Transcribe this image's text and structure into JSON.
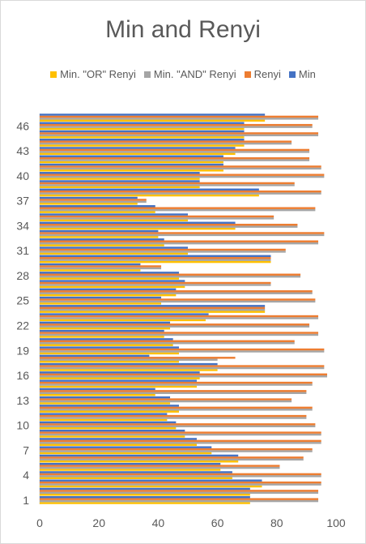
{
  "chart_data": {
    "type": "bar",
    "orientation": "horizontal",
    "title": "Min and Renyi",
    "xlabel": "",
    "ylabel": "",
    "xlim": [
      0,
      100
    ],
    "xticks": [
      0,
      20,
      40,
      60,
      80,
      100
    ],
    "yticks": [
      1,
      4,
      7,
      10,
      13,
      16,
      19,
      22,
      25,
      28,
      31,
      34,
      37,
      40,
      43,
      46
    ],
    "grid": false,
    "legend_position": "top",
    "categories": [
      1,
      2,
      3,
      4,
      5,
      6,
      7,
      8,
      9,
      10,
      11,
      12,
      13,
      14,
      15,
      16,
      17,
      18,
      19,
      20,
      21,
      22,
      23,
      24,
      25,
      26,
      27,
      28,
      29,
      30,
      31,
      32,
      33,
      34,
      35,
      36,
      37,
      38,
      39,
      40,
      41,
      42,
      43,
      44,
      45,
      46,
      47
    ],
    "series": [
      {
        "name": "Min. \"OR\" Renyi",
        "color": "#ffc000",
        "values": [
          71,
          71,
          75,
          65,
          61,
          67,
          58,
          53,
          49,
          46,
          43,
          47,
          44,
          39,
          53,
          54,
          60,
          47,
          47,
          45,
          42,
          44,
          56,
          76,
          41,
          46,
          49,
          47,
          34,
          78,
          50,
          42,
          40,
          66,
          50,
          39,
          33,
          74,
          54,
          54,
          62,
          62,
          66,
          69,
          69,
          69,
          76
        ]
      },
      {
        "name": "Min. \"AND\" Renyi",
        "color": "#a5a5a5",
        "values": [
          94,
          94,
          95,
          95,
          81,
          89,
          92,
          95,
          95,
          93,
          90,
          92,
          85,
          90,
          92,
          97,
          96,
          60,
          96,
          86,
          94,
          91,
          94,
          76,
          93,
          92,
          78,
          88,
          41,
          78,
          83,
          94,
          96,
          87,
          79,
          93,
          36,
          95,
          86,
          96,
          95,
          91,
          91,
          85,
          94,
          92,
          94
        ]
      },
      {
        "name": "Renyi",
        "color": "#ed7d31",
        "values": [
          94,
          94,
          95,
          95,
          81,
          89,
          92,
          95,
          95,
          93,
          90,
          92,
          85,
          90,
          92,
          97,
          96,
          66,
          96,
          86,
          94,
          91,
          94,
          76,
          93,
          92,
          78,
          88,
          41,
          78,
          83,
          94,
          96,
          87,
          79,
          93,
          36,
          95,
          86,
          96,
          95,
          91,
          91,
          85,
          94,
          92,
          94
        ]
      },
      {
        "name": "Min",
        "color": "#4472c4",
        "values": [
          71,
          71,
          75,
          65,
          61,
          67,
          58,
          53,
          49,
          46,
          43,
          47,
          44,
          39,
          53,
          54,
          60,
          37,
          47,
          45,
          42,
          44,
          57,
          76,
          41,
          46,
          49,
          47,
          34,
          78,
          50,
          42,
          40,
          66,
          50,
          39,
          33,
          74,
          54,
          54,
          62,
          62,
          66,
          69,
          69,
          69,
          76
        ]
      }
    ]
  }
}
